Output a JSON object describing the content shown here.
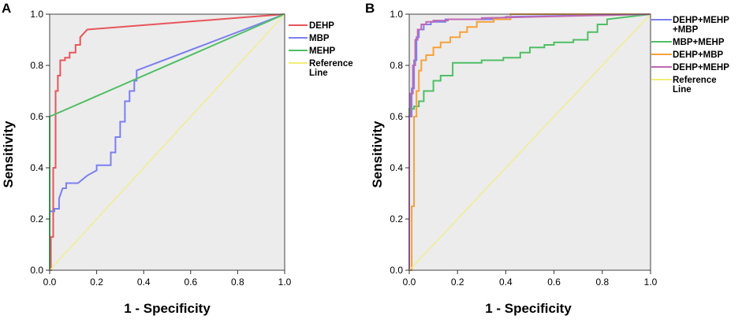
{
  "chart_data": [
    {
      "panel": "A",
      "type": "line",
      "xlabel": "1 - Specificity",
      "ylabel": "Sensitivity",
      "xlim": [
        0,
        1
      ],
      "ylim": [
        0,
        1
      ],
      "xticks": [
        "0.0",
        "0.2",
        "0.4",
        "0.6",
        "0.8",
        "1.0"
      ],
      "yticks": [
        "0.0",
        "0.2",
        "0.4",
        "0.6",
        "0.8",
        "1.0"
      ],
      "legend_position": "right",
      "series": [
        {
          "name": "DEHP",
          "color": "#e8555a",
          "x": [
            0,
            0.005,
            0.005,
            0.015,
            0.015,
            0.025,
            0.025,
            0.035,
            0.035,
            0.045,
            0.045,
            0.065,
            0.065,
            0.085,
            0.085,
            0.11,
            0.11,
            0.13,
            0.13,
            0.16,
            1.0
          ],
          "y": [
            0,
            0,
            0.13,
            0.13,
            0.4,
            0.4,
            0.7,
            0.7,
            0.76,
            0.76,
            0.82,
            0.82,
            0.83,
            0.83,
            0.85,
            0.85,
            0.88,
            0.88,
            0.91,
            0.94,
            1.0
          ]
        },
        {
          "name": "MBP",
          "color": "#7b7ff0",
          "x": [
            0,
            0.02,
            0.02,
            0.04,
            0.04,
            0.055,
            0.07,
            0.07,
            0.12,
            0.16,
            0.2,
            0.2,
            0.26,
            0.26,
            0.28,
            0.28,
            0.3,
            0.3,
            0.32,
            0.32,
            0.34,
            0.34,
            0.36,
            0.36,
            0.37,
            0.37,
            1.0
          ],
          "y": [
            0.23,
            0.23,
            0.24,
            0.24,
            0.28,
            0.32,
            0.32,
            0.34,
            0.34,
            0.37,
            0.39,
            0.41,
            0.41,
            0.46,
            0.46,
            0.52,
            0.52,
            0.58,
            0.58,
            0.66,
            0.66,
            0.7,
            0.7,
            0.74,
            0.74,
            0.78,
            1.0
          ]
        },
        {
          "name": "MEHP",
          "color": "#4fbf65",
          "x": [
            0,
            0,
            1.0
          ],
          "y": [
            0,
            0.6,
            1.0
          ]
        },
        {
          "name": "Reference Line",
          "color": "#f2ee78",
          "x": [
            0,
            1.0
          ],
          "y": [
            0,
            1.0
          ]
        }
      ]
    },
    {
      "panel": "B",
      "type": "line",
      "xlabel": "1 - Specificity",
      "ylabel": "Sensitivity",
      "xlim": [
        0,
        1
      ],
      "ylim": [
        0,
        1
      ],
      "xticks": [
        "0.0",
        "0.2",
        "0.4",
        "0.6",
        "0.8",
        "1.0"
      ],
      "yticks": [
        "0.0",
        "0.2",
        "0.4",
        "0.6",
        "0.8",
        "1.0"
      ],
      "legend_position": "right",
      "series": [
        {
          "name": "DEHP+MEHP+MBP",
          "color": "#7b7ff0",
          "x": [
            0,
            0,
            0.01,
            0.01,
            0.02,
            0.02,
            0.03,
            0.03,
            0.04,
            0.04,
            0.06,
            0.06,
            0.09,
            0.09,
            0.15,
            0.15,
            0.4,
            0.4,
            1.0
          ],
          "y": [
            0,
            0.6,
            0.6,
            0.71,
            0.71,
            0.82,
            0.82,
            0.91,
            0.91,
            0.94,
            0.94,
            0.96,
            0.96,
            0.97,
            0.97,
            0.98,
            0.98,
            0.99,
            1.0
          ]
        },
        {
          "name": "MBP+MEHP",
          "color": "#4fbf65",
          "x": [
            0,
            0,
            0.02,
            0.02,
            0.04,
            0.04,
            0.06,
            0.06,
            0.1,
            0.1,
            0.13,
            0.13,
            0.18,
            0.18,
            0.3,
            0.3,
            0.39,
            0.39,
            0.46,
            0.46,
            0.5,
            0.5,
            0.56,
            0.56,
            0.6,
            0.6,
            0.68,
            0.68,
            0.74,
            0.74,
            0.78,
            0.78,
            0.82,
            0.82,
            1.0
          ],
          "y": [
            0,
            0.63,
            0.63,
            0.64,
            0.64,
            0.66,
            0.66,
            0.7,
            0.7,
            0.74,
            0.74,
            0.76,
            0.76,
            0.81,
            0.81,
            0.82,
            0.82,
            0.83,
            0.83,
            0.85,
            0.85,
            0.87,
            0.87,
            0.88,
            0.88,
            0.89,
            0.89,
            0.9,
            0.9,
            0.93,
            0.93,
            0.96,
            0.96,
            0.98,
            1.0
          ]
        },
        {
          "name": "DEHP+MBP",
          "color": "#f5a13a",
          "x": [
            0,
            0.01,
            0.01,
            0.02,
            0.02,
            0.03,
            0.03,
            0.04,
            0.04,
            0.05,
            0.05,
            0.07,
            0.07,
            0.1,
            0.1,
            0.13,
            0.13,
            0.17,
            0.17,
            0.21,
            0.21,
            0.24,
            0.24,
            0.28,
            0.28,
            0.35,
            0.35,
            0.42,
            0.42,
            1.0
          ],
          "y": [
            0,
            0,
            0.25,
            0.25,
            0.6,
            0.6,
            0.7,
            0.7,
            0.78,
            0.78,
            0.82,
            0.82,
            0.84,
            0.84,
            0.87,
            0.87,
            0.89,
            0.89,
            0.91,
            0.91,
            0.93,
            0.93,
            0.95,
            0.95,
            0.97,
            0.97,
            0.98,
            0.98,
            1.0,
            1.0
          ]
        },
        {
          "name": "DEHP+MEHP",
          "color": "#c068b4",
          "x": [
            0,
            0,
            0.005,
            0.005,
            0.015,
            0.015,
            0.025,
            0.025,
            0.035,
            0.035,
            0.05,
            0.05,
            0.07,
            0.07,
            0.1,
            0.1,
            0.16,
            0.16,
            0.3,
            0.3,
            1.0
          ],
          "y": [
            0,
            0.6,
            0.6,
            0.69,
            0.69,
            0.8,
            0.8,
            0.9,
            0.9,
            0.94,
            0.94,
            0.96,
            0.96,
            0.97,
            0.97,
            0.975,
            0.975,
            0.98,
            0.98,
            0.985,
            1.0
          ]
        },
        {
          "name": "Reference Line",
          "color": "#f2ee78",
          "x": [
            0,
            1.0
          ],
          "y": [
            0,
            1.0
          ]
        }
      ]
    }
  ]
}
